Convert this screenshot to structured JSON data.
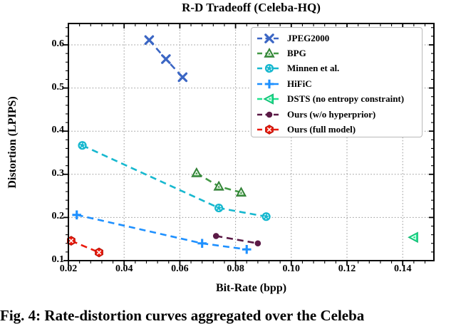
{
  "figure": {
    "caption": "Fig. 4: Rate-distortion curves aggregated over the Celeba"
  },
  "chart_data": {
    "type": "line",
    "title": "R-D Tradeoff (Celeba-HQ)",
    "xlabel": "Bit-Rate (bpp)",
    "ylabel": "Distortion (LPIPS)",
    "xlim": [
      0.02,
      0.1512
    ],
    "ylim": [
      0.1,
      0.6495
    ],
    "xtick_values": [
      0.02,
      0.04,
      0.06,
      0.08,
      0.1,
      0.12,
      0.14
    ],
    "xtick_labels": [
      "0.02",
      "0.04",
      "0.06",
      "0.08",
      "0.10",
      "0.12",
      "0.14"
    ],
    "ytick_values": [
      0.1,
      0.2,
      0.3,
      0.4,
      0.5,
      0.6
    ],
    "ytick_labels": [
      "0.1",
      "0.2",
      "0.3",
      "0.4",
      "0.5",
      "0.6"
    ],
    "grid": "dotted",
    "grid_color": "#9a9a9a",
    "line_style": "dashed",
    "legend_position": "upper right",
    "series": [
      {
        "name": "JPEG2000",
        "color": "#3b66c4",
        "edge_color": "#2d4f9e",
        "marker": "x",
        "points": [
          [
            0.049,
            0.611
          ],
          [
            0.055,
            0.567
          ],
          [
            0.061,
            0.525
          ]
        ]
      },
      {
        "name": "BPG",
        "color": "#449a47",
        "edge_color": "#2c7a31",
        "marker": "triangle-up",
        "points": [
          [
            0.066,
            0.303
          ],
          [
            0.074,
            0.272
          ],
          [
            0.082,
            0.258
          ]
        ]
      },
      {
        "name": "Minnen et al.",
        "color": "#17b8cf",
        "edge_color": "#0d93a8",
        "marker": "circle",
        "points": [
          [
            0.025,
            0.367
          ],
          [
            0.074,
            0.222
          ],
          [
            0.091,
            0.202
          ]
        ]
      },
      {
        "name": "HiFiC",
        "color": "#1e90ff",
        "edge_color": "#1a7be0",
        "marker": "plus",
        "points": [
          [
            0.023,
            0.206
          ],
          [
            0.068,
            0.14
          ],
          [
            0.084,
            0.126
          ]
        ]
      },
      {
        "name": "DSTS (no entropy constraint)",
        "color": "#21e38f",
        "edge_color": "#12b873",
        "marker": "triangle-left",
        "points": [
          [
            0.144,
            0.154
          ]
        ]
      },
      {
        "name": "Ours (w/o hyperprior)",
        "color": "#5b1a46",
        "edge_color": "#451034",
        "marker": "dot",
        "points": [
          [
            0.073,
            0.157
          ],
          [
            0.088,
            0.14
          ]
        ]
      },
      {
        "name": "Ours (full model)",
        "color": "#ea1a0c",
        "edge_color": "#b01208",
        "marker": "hex-cross",
        "points": [
          [
            0.021,
            0.146
          ],
          [
            0.031,
            0.119
          ]
        ]
      }
    ]
  }
}
